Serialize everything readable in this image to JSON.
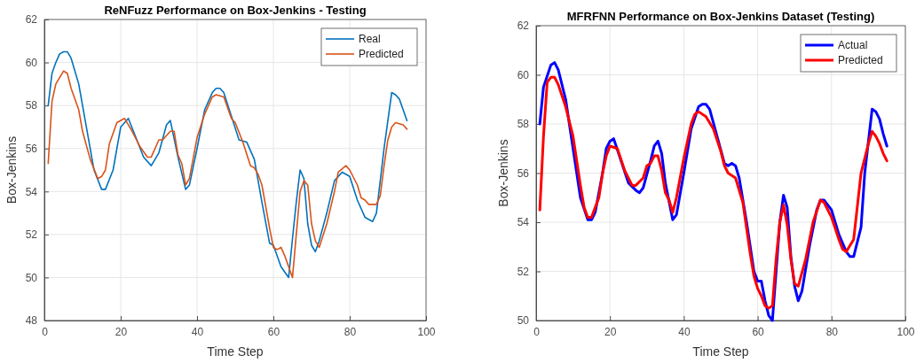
{
  "chart_data": [
    {
      "type": "line",
      "title": "ReNFuzz Performance on Box-Jenkins - Testing",
      "xlabel": "Time Step",
      "ylabel": "Box-Jenkins",
      "xlim": [
        0,
        100
      ],
      "xticks": [
        0,
        20,
        40,
        60,
        80,
        100
      ],
      "ylim": [
        48,
        62
      ],
      "yticks": [
        48,
        50,
        52,
        54,
        56,
        58,
        60,
        62
      ],
      "grid": true,
      "legend": "top right",
      "line_style": "solid",
      "marker": "none",
      "series": [
        {
          "name": "Real",
          "color": "#0072bd",
          "x": [
            1,
            2,
            3,
            4,
            5,
            6,
            7,
            9,
            11,
            13,
            15,
            16,
            18,
            20,
            22,
            24,
            26,
            28,
            30,
            32,
            33,
            35,
            37,
            38,
            40,
            42,
            44,
            45,
            46,
            47,
            49,
            51,
            53,
            55,
            57,
            59,
            60,
            62,
            64,
            65,
            66,
            67,
            68,
            69,
            70,
            71,
            72,
            74,
            76,
            78,
            80,
            82,
            84,
            86,
            87,
            89,
            91,
            92,
            93,
            95
          ],
          "values": [
            58,
            59.5,
            60,
            60.4,
            60.5,
            60.5,
            60.2,
            59,
            57,
            55,
            54.1,
            54.1,
            55,
            57,
            57.4,
            56.5,
            55.6,
            55.2,
            55.8,
            57.1,
            57.3,
            55.6,
            54.1,
            54.3,
            56,
            57.8,
            58.6,
            58.8,
            58.8,
            58.6,
            57.5,
            56.4,
            56.3,
            55.5,
            53.5,
            51.6,
            51.5,
            50.5,
            50,
            51.8,
            53.5,
            55,
            54.6,
            52.5,
            51.5,
            51.2,
            51.7,
            53,
            54.5,
            54.9,
            54.7,
            53.6,
            52.8,
            52.6,
            53,
            56,
            58.6,
            58.5,
            58.3,
            57.3
          ]
        },
        {
          "name": "Predicted",
          "color": "#d95319",
          "x": [
            1,
            2,
            3,
            5,
            6,
            7,
            9,
            10,
            12,
            14,
            15,
            16,
            17,
            19,
            21,
            23,
            25,
            27,
            28,
            30,
            31,
            33,
            34,
            35,
            36,
            37,
            38,
            40,
            42,
            44,
            45,
            47,
            49,
            50,
            52,
            54,
            55,
            56,
            57,
            59,
            60,
            61,
            62,
            63,
            64,
            65,
            66,
            67,
            68,
            69,
            70,
            71,
            72,
            74,
            76,
            77,
            79,
            80,
            82,
            83,
            84,
            85,
            87,
            88,
            89,
            90,
            91,
            92,
            94,
            95
          ],
          "values": [
            55.3,
            58.2,
            59,
            59.6,
            59.5,
            58.8,
            57.8,
            56.8,
            55.5,
            54.6,
            54.7,
            55,
            56.2,
            57.2,
            57.4,
            56.8,
            56.1,
            55.6,
            55.6,
            56.4,
            56.4,
            56.8,
            56.8,
            55.7,
            55.3,
            54.3,
            54.6,
            56.5,
            57.6,
            58.4,
            58.5,
            58.4,
            57.4,
            57.2,
            56.3,
            55.2,
            55.1,
            54.8,
            54.3,
            52.3,
            51.4,
            51.3,
            51.4,
            51,
            50.5,
            50,
            52,
            54,
            54.5,
            54.3,
            52.5,
            51.7,
            51.4,
            52.5,
            54,
            54.9,
            55.2,
            55,
            54.3,
            53.7,
            53.6,
            53.4,
            53.4,
            53.8,
            55.2,
            56.4,
            57,
            57.2,
            57.1,
            56.9
          ]
        }
      ]
    },
    {
      "type": "line",
      "title": "MFRFNN Performance on Box-Jenkins Dataset (Testing)",
      "xlabel": "Time Step",
      "ylabel": "Box-Jenkins",
      "xlim": [
        0,
        100
      ],
      "xticks": [
        0,
        20,
        40,
        60,
        80,
        100
      ],
      "ylim": [
        50,
        62
      ],
      "yticks": [
        50,
        52,
        54,
        56,
        58,
        60,
        62
      ],
      "grid": true,
      "legend": "top right",
      "line_style": "solid",
      "marker": "none",
      "series": [
        {
          "name": "Actual",
          "color": "#0000ff",
          "x": [
            1,
            2,
            4,
            5,
            6,
            8,
            10,
            12,
            14,
            15,
            16,
            18,
            19,
            20,
            21,
            23,
            25,
            27,
            28,
            29,
            31,
            32,
            33,
            34,
            35,
            37,
            38,
            40,
            42,
            44,
            45,
            46,
            47,
            49,
            51,
            52,
            53,
            54,
            55,
            57,
            59,
            60,
            61,
            62,
            63,
            64,
            65,
            66,
            67,
            68,
            69,
            70,
            71,
            72,
            74,
            76,
            77,
            78,
            80,
            82,
            84,
            85,
            86,
            88,
            89,
            91,
            92,
            93,
            94,
            95
          ],
          "values": [
            58,
            59.5,
            60.4,
            60.5,
            60.2,
            59,
            57,
            55,
            54.1,
            54.1,
            54.4,
            56,
            57,
            57.3,
            57.4,
            56.5,
            55.6,
            55.3,
            55.2,
            55.4,
            56.5,
            57.1,
            57.3,
            56.8,
            55.6,
            54.1,
            54.3,
            56,
            57.8,
            58.7,
            58.8,
            58.8,
            58.6,
            57.5,
            56.4,
            56.3,
            56.4,
            56.3,
            55.8,
            54,
            52,
            51.6,
            51.6,
            50.8,
            50.2,
            50,
            52,
            54,
            55.1,
            54.6,
            52.6,
            51.4,
            50.8,
            51.2,
            53,
            54.5,
            54.9,
            54.9,
            54.5,
            53.5,
            52.8,
            52.6,
            52.6,
            53.8,
            56,
            58.6,
            58.5,
            58.2,
            57.6,
            57.1
          ]
        },
        {
          "name": "Predicted",
          "color": "#ff0000",
          "x": [
            1,
            2,
            3,
            4,
            5,
            6,
            8,
            10,
            12,
            13,
            14,
            15,
            16,
            17,
            18,
            19,
            20,
            22,
            24,
            26,
            27,
            29,
            30,
            31,
            32,
            33,
            34,
            35,
            36,
            37,
            38,
            40,
            42,
            43,
            44,
            46,
            48,
            50,
            51,
            52,
            53,
            54,
            56,
            58,
            59,
            60,
            61,
            62,
            63,
            64,
            65,
            66,
            67,
            68,
            69,
            70,
            71,
            73,
            75,
            77,
            78,
            80,
            82,
            83,
            84,
            86,
            88,
            90,
            91,
            92,
            93,
            94,
            95
          ],
          "values": [
            54.5,
            57.5,
            59.7,
            59.9,
            59.9,
            59.6,
            58.7,
            57.5,
            55.5,
            54.6,
            54.2,
            54.2,
            54.6,
            55,
            56,
            56.7,
            57.1,
            57,
            56.1,
            55.5,
            55.5,
            55.8,
            56.3,
            56.4,
            56.7,
            56.7,
            56.1,
            55.2,
            54.9,
            54.4,
            55,
            56.6,
            58,
            58.4,
            58.5,
            58.3,
            57.8,
            56.9,
            56.3,
            56,
            55.9,
            55.8,
            54.8,
            52.7,
            51.8,
            51.3,
            51,
            50.6,
            50.5,
            50.6,
            52.5,
            54,
            54.7,
            53.9,
            52.5,
            51.5,
            51.4,
            52.5,
            54,
            54.9,
            54.8,
            54.2,
            53.3,
            52.9,
            52.8,
            53.3,
            56,
            57.2,
            57.7,
            57.5,
            57.2,
            56.8,
            56.5
          ]
        }
      ]
    }
  ]
}
